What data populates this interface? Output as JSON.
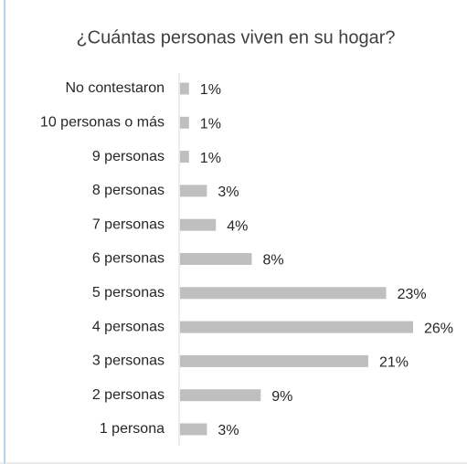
{
  "chart_data": {
    "type": "bar",
    "orientation": "horizontal",
    "title": "¿Cuántas personas viven en su hogar?",
    "categories": [
      "No contestaron",
      "10 personas o más",
      "9 personas",
      "8 personas",
      "7 personas",
      "6 personas",
      "5 personas",
      "4 personas",
      "3 personas",
      "2 personas",
      "1 persona"
    ],
    "values": [
      1,
      1,
      1,
      3,
      4,
      8,
      23,
      26,
      21,
      9,
      3
    ],
    "value_labels": [
      "1%",
      "1%",
      "1%",
      "3%",
      "4%",
      "8%",
      "23%",
      "26%",
      "21%",
      "9%",
      "3%"
    ],
    "color": "#bfbfbf"
  }
}
